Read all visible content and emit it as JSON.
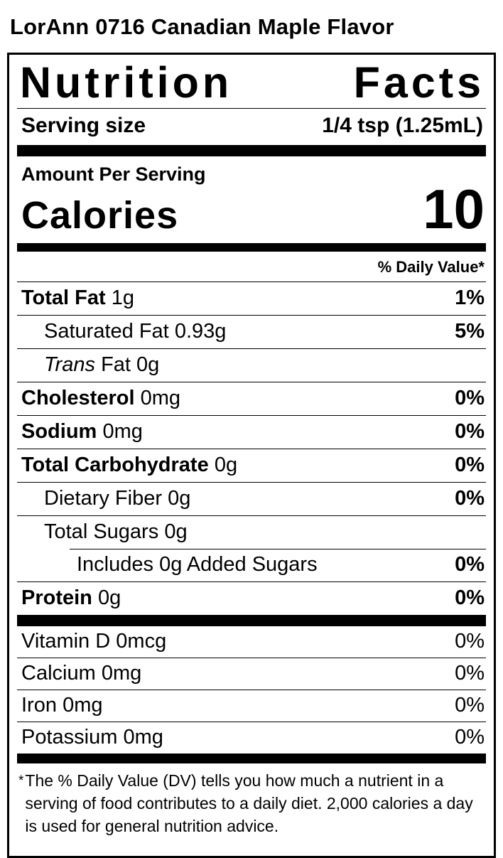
{
  "header": {
    "title": "LorAnn 0716 Canadian Maple Flavor"
  },
  "label": {
    "title_word_1": "Nutrition",
    "title_word_2": "Facts",
    "serving_size_label": "Serving size",
    "serving_size_value": "1/4 tsp (1.25mL)",
    "amount_per_serving": "Amount Per Serving",
    "calories_label": "Calories",
    "calories_value": "10",
    "daily_value_header": "% Daily Value*",
    "nutrients": [
      {
        "name": "Total Fat",
        "amount": "1g",
        "dv": "1%"
      },
      {
        "name": "Saturated Fat",
        "amount": "0.93g",
        "dv": "5%"
      },
      {
        "name_italic": "Trans",
        "amount": "Fat 0g",
        "dv": ""
      },
      {
        "name": "Cholesterol",
        "amount": "0mg",
        "dv": "0%"
      },
      {
        "name": "Sodium",
        "amount": "0mg",
        "dv": "0%"
      },
      {
        "name": "Total Carbohydrate",
        "amount": "0g",
        "dv": "0%"
      },
      {
        "name": "Dietary Fiber",
        "amount": "0g",
        "dv": "0%"
      },
      {
        "name": "Total Sugars",
        "amount": "0g",
        "dv": ""
      },
      {
        "name": "Includes 0g Added Sugars",
        "amount": "",
        "dv": "0%"
      },
      {
        "name": "Protein",
        "amount": "0g",
        "dv": "0%"
      }
    ],
    "micronutrients": [
      {
        "name": "Vitamin D",
        "amount": "0mcg",
        "dv": "0%"
      },
      {
        "name": "Calcium",
        "amount": "0mg",
        "dv": "0%"
      },
      {
        "name": "Iron",
        "amount": "0mg",
        "dv": "0%"
      },
      {
        "name": "Potassium",
        "amount": "0mg",
        "dv": "0%"
      }
    ],
    "footnote_marker": "*",
    "footnote_text": "The % Daily Value (DV) tells you how much a nutrient in a serving of food contributes to a daily diet. 2,000 calories a day is used for general nutrition advice."
  },
  "colors": {
    "text": "#000000",
    "background": "#ffffff",
    "rule": "#000000"
  }
}
